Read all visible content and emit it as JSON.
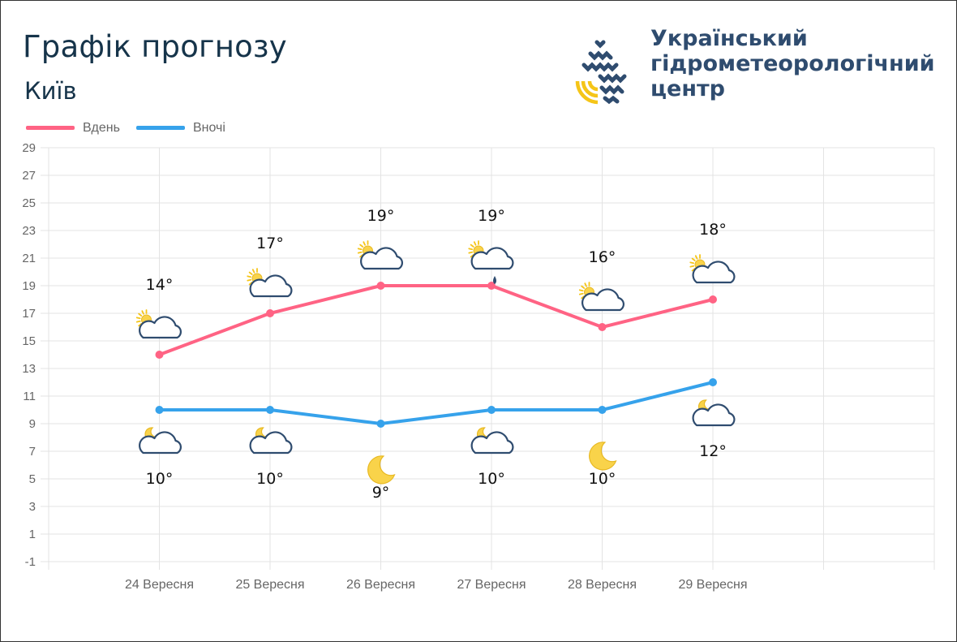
{
  "header": {
    "title": "Графік прогнозу",
    "city": "Київ",
    "org_lines": [
      "Український",
      "гідрометеорологічний",
      "центр"
    ]
  },
  "colors": {
    "day": "#ff6384",
    "night": "#36a2eb",
    "title": "#16344a",
    "org": "#2f4c6f",
    "logo_dark": "#2f4c6f",
    "logo_gold": "#f5c518"
  },
  "legend": [
    {
      "label": "Вдень",
      "color": "#ff6384"
    },
    {
      "label": "Вночі",
      "color": "#36a2eb"
    }
  ],
  "chart_data": {
    "type": "line",
    "categories": [
      "24 Вересня",
      "25 Вересня",
      "26 Вересня",
      "27 Вересня",
      "28 Вересня",
      "29 Вересня"
    ],
    "series": [
      {
        "name": "Вдень",
        "values": [
          14,
          17,
          19,
          19,
          16,
          18
        ],
        "labels": [
          "14°",
          "17°",
          "19°",
          "19°",
          "16°",
          "18°"
        ],
        "icons": [
          "sun-cloud",
          "sun-cloud",
          "sun-cloud",
          "sun-cloud-rain",
          "sun-cloud",
          "sun-cloud"
        ]
      },
      {
        "name": "Вночі",
        "values": [
          10,
          10,
          9,
          10,
          10,
          12
        ],
        "labels": [
          "10°",
          "10°",
          "9°",
          "10°",
          "10°",
          "12°"
        ],
        "icons": [
          "moon-cloud",
          "moon-cloud",
          "moon",
          "moon-cloud",
          "moon",
          "moon-cloud"
        ]
      }
    ],
    "yticks": [
      29,
      27,
      25,
      23,
      21,
      19,
      17,
      15,
      13,
      11,
      9,
      7,
      5,
      3,
      1,
      -1
    ],
    "ylim": [
      -1,
      29
    ],
    "grid": true,
    "legend_position": "top-left"
  }
}
